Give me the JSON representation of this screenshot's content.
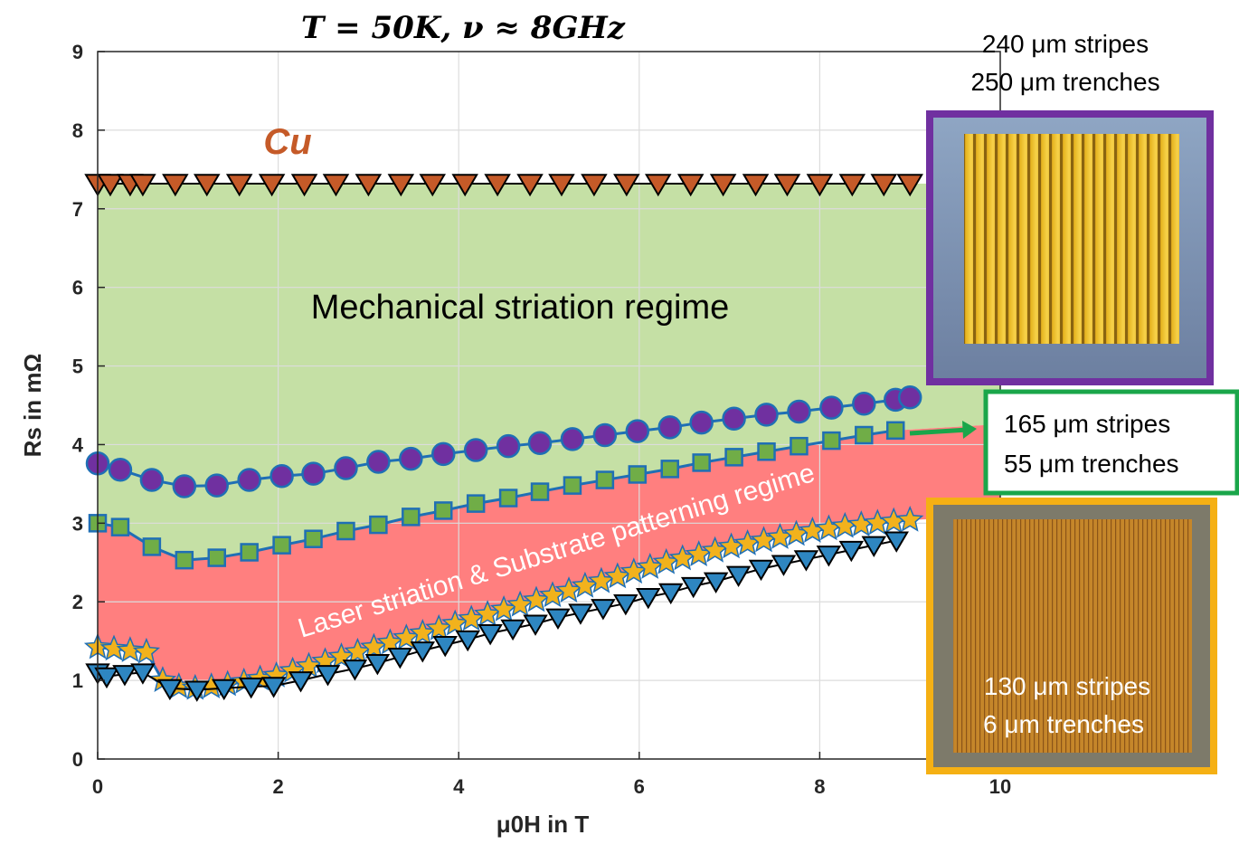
{
  "chart_data": {
    "type": "scatter",
    "title": "T = 50K, ν ≈ 8GHz",
    "xlabel": "μ0H in T",
    "ylabel": "Rs in mΩ",
    "xlim": [
      0,
      10
    ],
    "ylim": [
      0,
      9
    ],
    "xticks": [
      "0",
      "2",
      "4",
      "6",
      "8",
      "10"
    ],
    "yticks": [
      "0",
      "1",
      "2",
      "3",
      "4",
      "5",
      "6",
      "7",
      "8",
      "9"
    ],
    "grid": true,
    "series": [
      {
        "name": "Cu",
        "marker": "triangle-down",
        "color": "#c55a28",
        "x": [
          0,
          0.14,
          0.36,
          0.5,
          0.86,
          1.21,
          1.57,
          1.93,
          2.29,
          2.64,
          3.0,
          3.36,
          3.71,
          4.07,
          4.43,
          4.79,
          5.14,
          5.5,
          5.86,
          6.21,
          6.57,
          6.93,
          7.29,
          7.64,
          8.0,
          8.36,
          8.71,
          9.0
        ],
        "y": [
          7.32,
          7.32,
          7.32,
          7.32,
          7.32,
          7.32,
          7.32,
          7.32,
          7.32,
          7.32,
          7.32,
          7.32,
          7.32,
          7.32,
          7.32,
          7.32,
          7.32,
          7.32,
          7.32,
          7.32,
          7.32,
          7.32,
          7.32,
          7.32,
          7.32,
          7.32,
          7.32,
          7.32
        ]
      },
      {
        "name": "240 μm stripes 250 μm trenches",
        "marker": "circle",
        "color": "#7030a0",
        "x": [
          0,
          0.25,
          0.6,
          0.96,
          1.32,
          1.68,
          2.04,
          2.39,
          2.75,
          3.11,
          3.47,
          3.83,
          4.19,
          4.55,
          4.9,
          5.26,
          5.62,
          5.98,
          6.34,
          6.69,
          7.05,
          7.41,
          7.77,
          8.13,
          8.49,
          8.84,
          9.0
        ],
        "y": [
          3.76,
          3.68,
          3.55,
          3.47,
          3.48,
          3.55,
          3.6,
          3.63,
          3.7,
          3.78,
          3.82,
          3.88,
          3.93,
          3.98,
          4.02,
          4.07,
          4.12,
          4.17,
          4.22,
          4.28,
          4.33,
          4.38,
          4.42,
          4.47,
          4.52,
          4.57,
          4.6
        ]
      },
      {
        "name": "165 μm stripes 55 μm trenches",
        "marker": "square",
        "color": "#70ad47",
        "x": [
          0,
          0.25,
          0.6,
          0.96,
          1.32,
          1.68,
          2.04,
          2.39,
          2.75,
          3.11,
          3.47,
          3.83,
          4.19,
          4.55,
          4.9,
          5.26,
          5.62,
          5.98,
          6.34,
          6.69,
          7.05,
          7.41,
          7.77,
          8.13,
          8.49,
          8.84
        ],
        "y": [
          3.0,
          2.95,
          2.7,
          2.53,
          2.56,
          2.63,
          2.72,
          2.8,
          2.9,
          2.98,
          3.08,
          3.16,
          3.25,
          3.32,
          3.4,
          3.48,
          3.55,
          3.62,
          3.69,
          3.77,
          3.84,
          3.91,
          3.98,
          4.05,
          4.12,
          4.18
        ]
      },
      {
        "name": "130 μm stripes 6 μm trenches",
        "marker": "star",
        "color": "#f2b21c",
        "x": [
          0,
          0.18,
          0.36,
          0.54,
          0.72,
          0.9,
          1.08,
          1.26,
          1.44,
          1.62,
          1.8,
          1.98,
          2.16,
          2.34,
          2.52,
          2.7,
          2.88,
          3.06,
          3.24,
          3.42,
          3.6,
          3.78,
          3.96,
          4.14,
          4.32,
          4.5,
          4.68,
          4.86,
          5.04,
          5.22,
          5.4,
          5.58,
          5.76,
          5.94,
          6.12,
          6.3,
          6.48,
          6.66,
          6.84,
          7.02,
          7.2,
          7.38,
          7.56,
          7.74,
          7.92,
          8.1,
          8.28,
          8.46,
          8.64,
          8.82,
          9.0
        ],
        "y": [
          1.42,
          1.4,
          1.38,
          1.36,
          1.0,
          0.92,
          0.9,
          0.92,
          0.95,
          0.98,
          1.02,
          1.06,
          1.12,
          1.18,
          1.24,
          1.3,
          1.36,
          1.42,
          1.48,
          1.54,
          1.6,
          1.66,
          1.72,
          1.78,
          1.84,
          1.9,
          1.96,
          2.02,
          2.08,
          2.14,
          2.2,
          2.26,
          2.32,
          2.38,
          2.44,
          2.5,
          2.55,
          2.6,
          2.65,
          2.7,
          2.74,
          2.78,
          2.82,
          2.86,
          2.9,
          2.93,
          2.96,
          2.98,
          3.0,
          3.02,
          3.04
        ]
      },
      {
        "name": "130 μm stripes 6 μm trenches (triangles)",
        "marker": "triangle-down",
        "color": "#2e86c1",
        "x": [
          0,
          0.1,
          0.3,
          0.5,
          0.8,
          1.1,
          1.4,
          1.7,
          1.95,
          2.25,
          2.55,
          2.85,
          3.1,
          3.35,
          3.6,
          3.85,
          4.1,
          4.35,
          4.6,
          4.85,
          5.1,
          5.35,
          5.6,
          5.85,
          6.1,
          6.35,
          6.6,
          6.85,
          7.1,
          7.35,
          7.6,
          7.85,
          8.1,
          8.35,
          8.6,
          8.85
        ],
        "y": [
          1.1,
          1.05,
          1.08,
          1.1,
          0.9,
          0.88,
          0.9,
          0.92,
          0.93,
          1.0,
          1.08,
          1.15,
          1.22,
          1.3,
          1.38,
          1.45,
          1.52,
          1.6,
          1.66,
          1.72,
          1.8,
          1.86,
          1.92,
          1.98,
          2.06,
          2.12,
          2.2,
          2.26,
          2.34,
          2.42,
          2.48,
          2.54,
          2.6,
          2.66,
          2.72,
          2.78
        ]
      }
    ],
    "regions": [
      {
        "label": "Mechanical striation regime",
        "color": "#c5e0a5"
      },
      {
        "label": "Laser striation & Substrate patterning regime",
        "color": "#ff7f7f"
      }
    ],
    "annotations": {
      "cu": "Cu",
      "img1_caption": [
        "240 μm stripes",
        "250 μm trenches"
      ],
      "img2_caption": [
        "165 μm stripes",
        "55 μm trenches"
      ],
      "img3_caption": [
        "130 μm stripes",
        "6 μm trenches"
      ]
    },
    "frame_colors": {
      "purple": "#7030a0",
      "green": "#1aa64a",
      "orange": "#f5b014"
    }
  }
}
